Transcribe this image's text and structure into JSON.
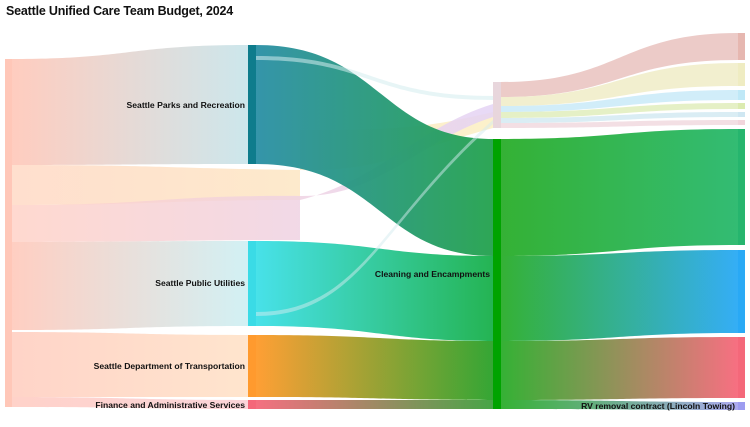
{
  "title": "Seattle Unified Care Team Budget, 2024",
  "nodes": [
    {
      "id": "src",
      "label": "",
      "color": "#ffc7b8"
    },
    {
      "id": "parks",
      "label": "Seattle Parks and Recreation",
      "color": "#0e7c8c"
    },
    {
      "id": "spu",
      "label": "Seattle Public Utilities",
      "color": "#3adbe6"
    },
    {
      "id": "sdot",
      "label": "Seattle Department of Transportation",
      "color": "#ff9a2e"
    },
    {
      "id": "fas",
      "label": "Finance and Administrative Services",
      "color": "#f4687a"
    },
    {
      "id": "clean",
      "label": "Cleaning and Encampments",
      "color": "#00a300"
    },
    {
      "id": "rv",
      "label": "RV removal contract (Lincoln Towing)",
      "color": "#9d9cf0"
    },
    {
      "id": "o1",
      "label": "",
      "color": "#e6b7b0"
    },
    {
      "id": "o2",
      "label": "",
      "color": "#efecc2"
    },
    {
      "id": "o3",
      "label": "",
      "color": "#bfe8f7"
    },
    {
      "id": "o4",
      "label": "",
      "color": "#dcebb0"
    },
    {
      "id": "o5",
      "label": "",
      "color": "#cfe7f2"
    },
    {
      "id": "o6",
      "label": "",
      "color": "#f2d5dc"
    },
    {
      "id": "big1",
      "label": "",
      "color": "#26b56e"
    },
    {
      "id": "big2",
      "label": "",
      "color": "#29a9f5"
    },
    {
      "id": "big3",
      "label": "",
      "color": "#f4687a"
    }
  ]
}
